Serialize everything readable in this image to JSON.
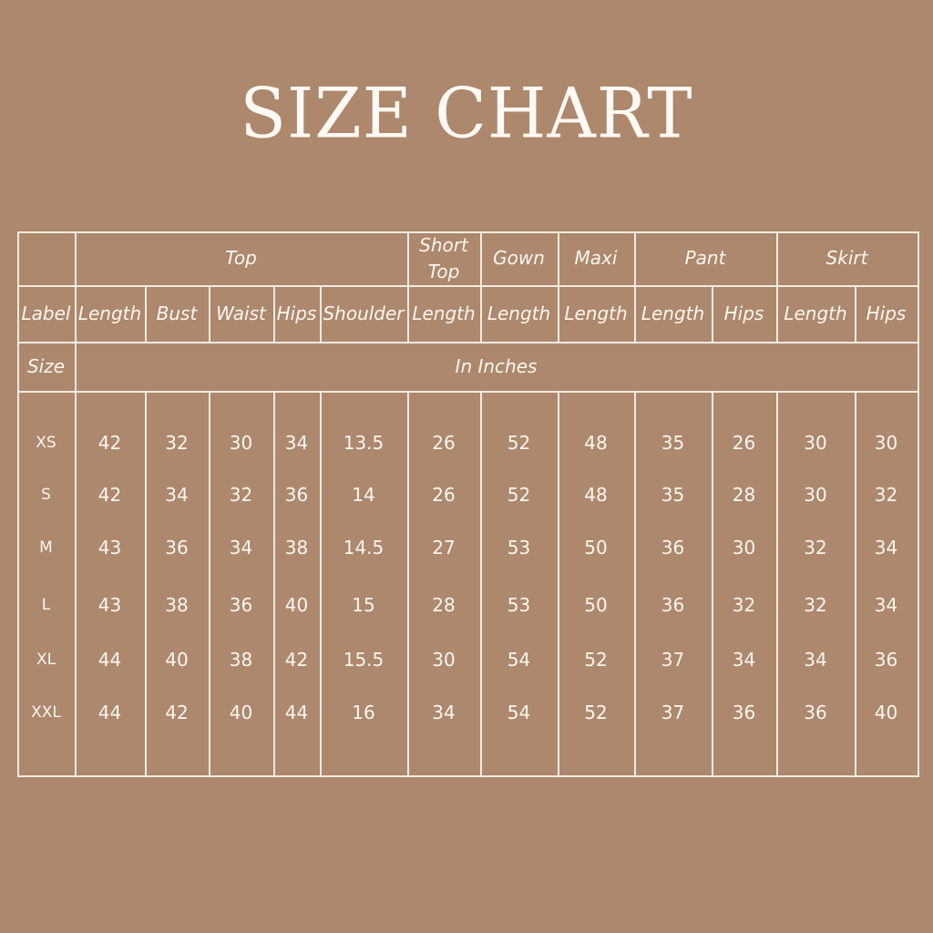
{
  "title": "SIZE CHART",
  "colors": {
    "background": "#ad886d",
    "text": "#fbf6f0"
  },
  "table": {
    "groups": [
      "Top",
      "Short Top",
      "Gown",
      "Maxi",
      "Pant",
      "Skirt"
    ],
    "columns": [
      "Label",
      "Length",
      "Bust",
      "Waist",
      "Hips",
      "Shoulder",
      "Length",
      "Length",
      "Length",
      "Length",
      "Hips",
      "Length",
      "Hips"
    ],
    "size_label": "Size",
    "unit": "In Inches",
    "rows": [
      [
        "XS",
        "42",
        "32",
        "30",
        "34",
        "13.5",
        "26",
        "52",
        "48",
        "35",
        "26",
        "30",
        "30"
      ],
      [
        "S",
        "42",
        "34",
        "32",
        "36",
        "14",
        "26",
        "52",
        "48",
        "35",
        "28",
        "30",
        "32"
      ],
      [
        "M",
        "43",
        "36",
        "34",
        "38",
        "14.5",
        "27",
        "53",
        "50",
        "36",
        "30",
        "32",
        "34"
      ],
      [
        "L",
        "43",
        "38",
        "36",
        "40",
        "15",
        "28",
        "53",
        "50",
        "36",
        "32",
        "32",
        "34"
      ],
      [
        "XL",
        "44",
        "40",
        "38",
        "42",
        "15.5",
        "30",
        "54",
        "52",
        "37",
        "34",
        "34",
        "36"
      ],
      [
        "XXL",
        "44",
        "42",
        "40",
        "44",
        "16",
        "34",
        "54",
        "52",
        "37",
        "36",
        "36",
        "40"
      ]
    ]
  }
}
